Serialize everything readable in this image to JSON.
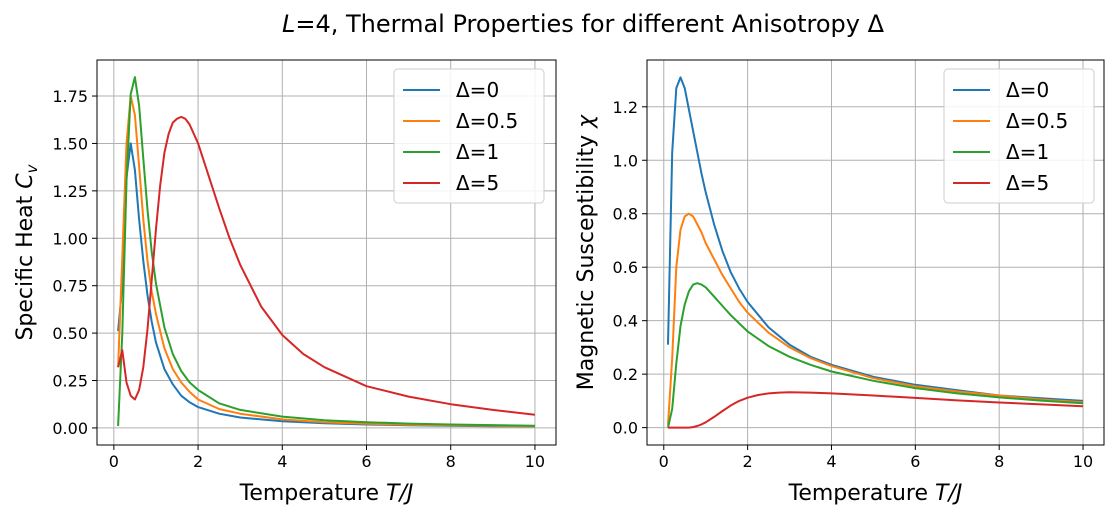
{
  "suptitle": {
    "italic": "L",
    "text": "=4, Thermal Properties for different Anisotropy Δ"
  },
  "colors": {
    "delta_0": "#1f77b4",
    "delta_0_5": "#ff7f0e",
    "delta_1": "#2ca02c",
    "delta_5": "#d62728",
    "grid": "#b0b0b0",
    "axes": "#000000"
  },
  "chart_data": [
    {
      "type": "line",
      "title": "",
      "xlabel": {
        "text": "Temperature ",
        "italic": "T/J"
      },
      "ylabel": {
        "text": "Specific Heat ",
        "italic": "C",
        "subscript": "v"
      },
      "xlim": [
        -0.4,
        10.5
      ],
      "ylim": [
        -0.09,
        1.94
      ],
      "xticks": [
        0,
        2,
        4,
        6,
        8,
        10
      ],
      "xtick_labels": [
        "0",
        "2",
        "4",
        "6",
        "8",
        "10"
      ],
      "yticks": [
        0.0,
        0.25,
        0.5,
        0.75,
        1.0,
        1.25,
        1.5,
        1.75
      ],
      "ytick_labels": [
        "0.00",
        "0.25",
        "0.50",
        "0.75",
        "1.00",
        "1.25",
        "1.50",
        "1.75"
      ],
      "grid": true,
      "legend_position": "top-right",
      "series": [
        {
          "name": "Δ=0",
          "color_key": "delta_0",
          "x": [
            0.1,
            0.2,
            0.3,
            0.4,
            0.5,
            0.6,
            0.7,
            0.8,
            0.9,
            1.0,
            1.2,
            1.4,
            1.6,
            1.8,
            2.0,
            2.5,
            3,
            4,
            5,
            6,
            7,
            8,
            9,
            10
          ],
          "y": [
            0.51,
            0.75,
            1.32,
            1.5,
            1.36,
            1.1,
            0.88,
            0.7,
            0.56,
            0.45,
            0.31,
            0.23,
            0.17,
            0.135,
            0.11,
            0.075,
            0.055,
            0.035,
            0.025,
            0.018,
            0.014,
            0.011,
            0.009,
            0.008
          ]
        },
        {
          "name": "Δ=0.5",
          "color_key": "delta_0_5",
          "x": [
            0.1,
            0.2,
            0.3,
            0.4,
            0.5,
            0.6,
            0.7,
            0.8,
            0.9,
            1.0,
            1.2,
            1.4,
            1.6,
            1.8,
            2.0,
            2.5,
            3,
            4,
            5,
            6,
            7,
            8,
            9,
            10
          ],
          "y": [
            0.32,
            0.9,
            1.5,
            1.75,
            1.65,
            1.38,
            1.1,
            0.88,
            0.72,
            0.6,
            0.42,
            0.31,
            0.24,
            0.19,
            0.15,
            0.1,
            0.075,
            0.045,
            0.03,
            0.022,
            0.017,
            0.014,
            0.011,
            0.009
          ]
        },
        {
          "name": "Δ=1",
          "color_key": "delta_1",
          "x": [
            0.1,
            0.2,
            0.3,
            0.4,
            0.5,
            0.6,
            0.7,
            0.8,
            0.9,
            1.0,
            1.2,
            1.4,
            1.6,
            1.8,
            2.0,
            2.5,
            3,
            4,
            5,
            6,
            7,
            8,
            9,
            10
          ],
          "y": [
            0.01,
            0.5,
            1.3,
            1.76,
            1.85,
            1.7,
            1.42,
            1.15,
            0.93,
            0.76,
            0.53,
            0.39,
            0.3,
            0.24,
            0.2,
            0.13,
            0.095,
            0.06,
            0.04,
            0.03,
            0.023,
            0.018,
            0.015,
            0.012
          ]
        },
        {
          "name": "Δ=5",
          "color_key": "delta_5",
          "x": [
            0.1,
            0.2,
            0.3,
            0.4,
            0.5,
            0.6,
            0.7,
            0.8,
            0.9,
            1.0,
            1.1,
            1.2,
            1.3,
            1.4,
            1.5,
            1.6,
            1.7,
            1.8,
            2.0,
            2.25,
            2.5,
            2.75,
            3.0,
            3.5,
            4.0,
            4.5,
            5,
            6,
            7,
            8,
            9,
            10
          ],
          "y": [
            0.32,
            0.41,
            0.24,
            0.17,
            0.15,
            0.2,
            0.32,
            0.52,
            0.78,
            1.05,
            1.28,
            1.45,
            1.55,
            1.61,
            1.63,
            1.64,
            1.63,
            1.6,
            1.5,
            1.33,
            1.16,
            1.0,
            0.86,
            0.64,
            0.49,
            0.39,
            0.32,
            0.22,
            0.165,
            0.125,
            0.095,
            0.07
          ]
        }
      ]
    },
    {
      "type": "line",
      "title": "",
      "xlabel": {
        "text": "Temperature ",
        "italic": "T/J"
      },
      "ylabel": {
        "text": "Magnetic Susceptibility ",
        "italic": "χ"
      },
      "xlim": [
        -0.4,
        10.5
      ],
      "ylim": [
        -0.065,
        1.375
      ],
      "xticks": [
        0,
        2,
        4,
        6,
        8,
        10
      ],
      "xtick_labels": [
        "0",
        "2",
        "4",
        "6",
        "8",
        "10"
      ],
      "yticks": [
        0.0,
        0.2,
        0.4,
        0.6,
        0.8,
        1.0,
        1.2
      ],
      "ytick_labels": [
        "0.0",
        "0.2",
        "0.4",
        "0.6",
        "0.8",
        "1.0",
        "1.2"
      ],
      "grid": true,
      "legend_position": "top-right",
      "series": [
        {
          "name": "Δ=0",
          "color_key": "delta_0",
          "x": [
            0.1,
            0.2,
            0.3,
            0.4,
            0.5,
            0.6,
            0.7,
            0.8,
            0.9,
            1.0,
            1.2,
            1.4,
            1.6,
            1.8,
            2.0,
            2.5,
            3,
            3.5,
            4,
            5,
            6,
            7,
            8,
            9,
            10
          ],
          "y": [
            0.31,
            1.03,
            1.27,
            1.31,
            1.27,
            1.19,
            1.11,
            1.03,
            0.95,
            0.88,
            0.76,
            0.66,
            0.58,
            0.52,
            0.47,
            0.375,
            0.31,
            0.265,
            0.235,
            0.19,
            0.16,
            0.14,
            0.12,
            0.11,
            0.1
          ]
        },
        {
          "name": "Δ=0.5",
          "color_key": "delta_0_5",
          "x": [
            0.1,
            0.2,
            0.3,
            0.4,
            0.5,
            0.6,
            0.7,
            0.8,
            0.9,
            1.0,
            1.2,
            1.4,
            1.6,
            1.8,
            2.0,
            2.5,
            3,
            3.5,
            4,
            5,
            6,
            7,
            8,
            9,
            10
          ],
          "y": [
            0.01,
            0.26,
            0.6,
            0.74,
            0.79,
            0.8,
            0.79,
            0.76,
            0.73,
            0.69,
            0.63,
            0.57,
            0.52,
            0.47,
            0.43,
            0.355,
            0.3,
            0.26,
            0.23,
            0.185,
            0.155,
            0.135,
            0.12,
            0.105,
            0.095
          ]
        },
        {
          "name": "Δ=1",
          "color_key": "delta_1",
          "x": [
            0.1,
            0.2,
            0.3,
            0.4,
            0.5,
            0.6,
            0.7,
            0.8,
            0.9,
            1.0,
            1.2,
            1.4,
            1.6,
            1.8,
            2.0,
            2.5,
            3,
            3.5,
            4,
            5,
            6,
            7,
            8,
            9,
            10
          ],
          "y": [
            0.0,
            0.07,
            0.24,
            0.38,
            0.46,
            0.51,
            0.535,
            0.54,
            0.535,
            0.525,
            0.49,
            0.455,
            0.42,
            0.39,
            0.36,
            0.305,
            0.265,
            0.235,
            0.21,
            0.175,
            0.148,
            0.128,
            0.113,
            0.101,
            0.091
          ]
        },
        {
          "name": "Δ=5",
          "color_key": "delta_5",
          "x": [
            0.1,
            0.2,
            0.3,
            0.4,
            0.5,
            0.6,
            0.7,
            0.8,
            0.9,
            1.0,
            1.2,
            1.4,
            1.6,
            1.8,
            2.0,
            2.25,
            2.5,
            2.75,
            3.0,
            3.5,
            4,
            5,
            6,
            7,
            8,
            9,
            10
          ],
          "y": [
            0.0,
            0.0,
            0.0,
            0.0,
            0.0,
            0.0,
            0.002,
            0.006,
            0.012,
            0.02,
            0.04,
            0.062,
            0.083,
            0.1,
            0.112,
            0.122,
            0.128,
            0.131,
            0.132,
            0.131,
            0.128,
            0.12,
            0.111,
            0.102,
            0.094,
            0.087,
            0.08
          ]
        }
      ]
    }
  ]
}
